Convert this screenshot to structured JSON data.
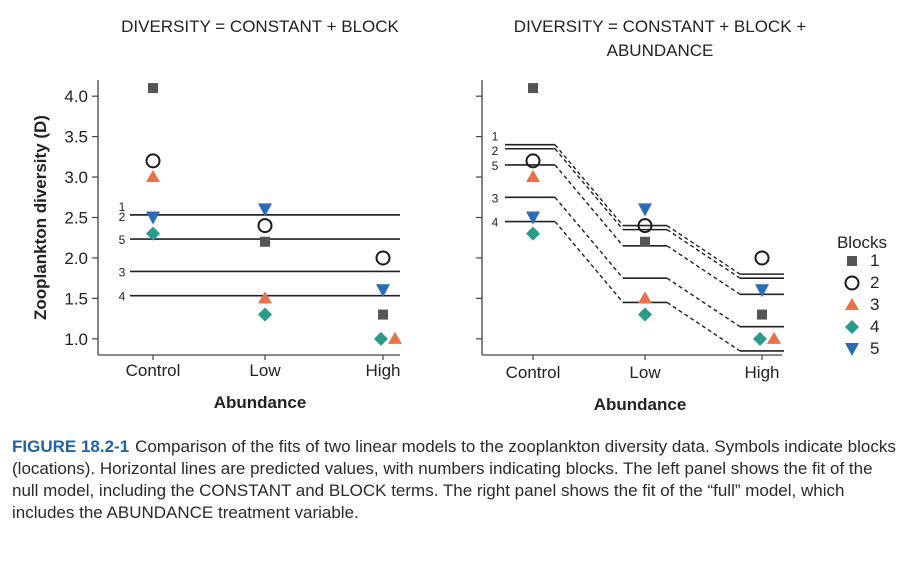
{
  "chart_data": [
    {
      "type": "scatter",
      "title_lines": [
        "DIVERSITY = CONSTANT  +  BLOCK"
      ],
      "ylabel": "Zooplankton diversity (D)",
      "xlabel": "Abundance",
      "categories": [
        "Control",
        "Low",
        "High"
      ],
      "ylim": [
        0.8,
        4.2
      ],
      "yticks": [
        "1.0",
        "1.5",
        "2.0",
        "2.5",
        "3.0",
        "3.5",
        "4.0"
      ],
      "series": [
        {
          "name": "1",
          "values": [
            4.1,
            2.2,
            1.3
          ]
        },
        {
          "name": "2",
          "values": [
            3.2,
            2.4,
            2.0
          ]
        },
        {
          "name": "3",
          "values": [
            3.0,
            1.5,
            1.0
          ]
        },
        {
          "name": "4",
          "values": [
            2.3,
            1.3,
            1.0
          ]
        },
        {
          "name": "5",
          "values": [
            2.5,
            2.6,
            1.6
          ]
        }
      ],
      "fitted_lines": [
        {
          "label": "1",
          "values": [
            2.533,
            2.533,
            2.533
          ]
        },
        {
          "label": "2",
          "values": [
            2.533,
            2.533,
            2.533
          ]
        },
        {
          "label": "5",
          "values": [
            2.233,
            2.233,
            2.233
          ]
        },
        {
          "label": "3",
          "values": [
            1.833,
            1.833,
            1.833
          ]
        },
        {
          "label": "4",
          "values": [
            1.533,
            1.533,
            1.533
          ]
        }
      ]
    },
    {
      "type": "scatter",
      "title_lines": [
        "DIVERSITY = CONSTANT  +  BLOCK +",
        "ABUNDANCE"
      ],
      "xlabel": "Abundance",
      "categories": [
        "Control",
        "Low",
        "High"
      ],
      "ylim": [
        0.8,
        4.2
      ],
      "series": [
        {
          "name": "1",
          "values": [
            4.1,
            2.2,
            1.3
          ]
        },
        {
          "name": "2",
          "values": [
            3.2,
            2.4,
            2.0
          ]
        },
        {
          "name": "3",
          "values": [
            3.0,
            1.5,
            1.0
          ]
        },
        {
          "name": "4",
          "values": [
            2.3,
            1.3,
            1.0
          ]
        },
        {
          "name": "5",
          "values": [
            2.5,
            2.6,
            1.6
          ]
        }
      ],
      "fitted_lines": [
        {
          "label": "1",
          "values": [
            3.4,
            2.4,
            1.8
          ]
        },
        {
          "label": "2",
          "values": [
            3.35,
            2.35,
            1.75
          ]
        },
        {
          "label": "5",
          "values": [
            3.15,
            2.15,
            1.55
          ]
        },
        {
          "label": "3",
          "values": [
            2.75,
            1.75,
            1.15
          ]
        },
        {
          "label": "4",
          "values": [
            2.45,
            1.45,
            0.85
          ]
        }
      ]
    }
  ],
  "legend": {
    "title": "Blocks",
    "placement": "right",
    "items": [
      {
        "label": "1",
        "marker": "square",
        "color": "#555555"
      },
      {
        "label": "2",
        "marker": "open-circle",
        "color": "#1a1a1a"
      },
      {
        "label": "3",
        "marker": "triangle-up",
        "color": "#e8734a"
      },
      {
        "label": "4",
        "marker": "diamond",
        "color": "#2a9a8a"
      },
      {
        "label": "5",
        "marker": "triangle-down",
        "color": "#2a6db5"
      }
    ]
  },
  "caption": {
    "label": "FIGURE 18.2-1",
    "text": "Comparison of the fits of two linear models to the zooplankton diversity data. Symbols indicate blocks (locations). Horizontal lines are predicted values, with numbers indicating blocks. The left panel shows the fit of the null model, including the CONSTANT and BLOCK terms. The right panel shows the fit of the “full” model, which includes the ABUNDANCE treatment variable."
  }
}
